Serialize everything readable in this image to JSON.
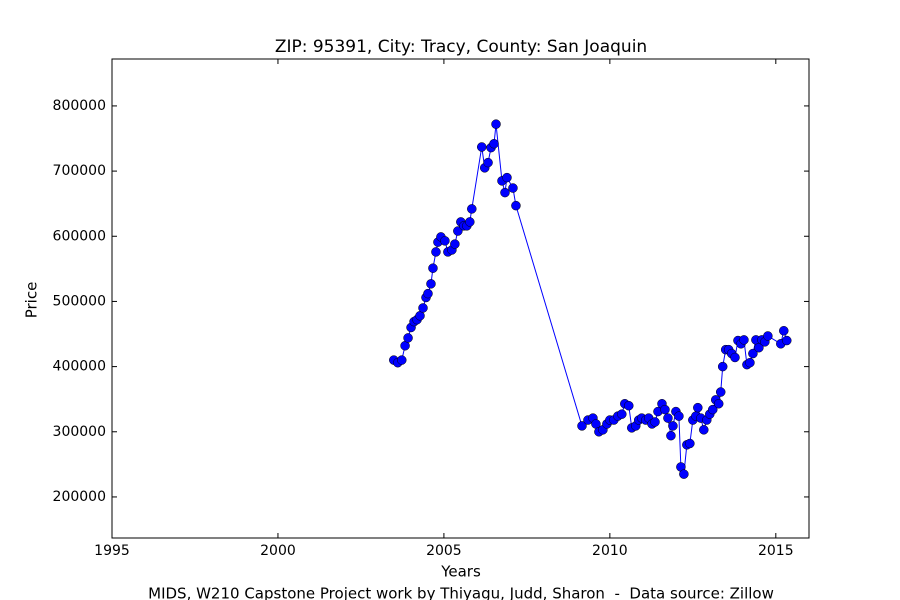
{
  "chart_data": {
    "type": "line",
    "title": "ZIP: 95391, City: Tracy, County: San Joaquin",
    "xlabel": "Years",
    "ylabel": "Price",
    "footer": "MIDS, W210 Capstone Project work by Thiyagu, Judd, Sharon  -  Data source: Zillow",
    "xlim": [
      1995,
      2016
    ],
    "xticks": [
      1995,
      2000,
      2005,
      2010,
      2015
    ],
    "ylim": [
      137000,
      872000
    ],
    "yticks": [
      200000,
      300000,
      400000,
      500000,
      600000,
      700000,
      800000
    ],
    "grid": false,
    "x": [
      2003.49,
      2003.61,
      2003.73,
      2003.83,
      2003.92,
      2004.01,
      2004.1,
      2004.19,
      2004.28,
      2004.37,
      2004.46,
      2004.52,
      2004.61,
      2004.67,
      2004.76,
      2004.82,
      2004.91,
      2005.03,
      2005.12,
      2005.24,
      2005.33,
      2005.42,
      2005.51,
      2005.6,
      2005.69,
      2005.78,
      2005.84,
      2006.14,
      2006.23,
      2006.33,
      2006.42,
      2006.51,
      2006.57,
      2006.75,
      2006.84,
      2006.9,
      2007.08,
      2007.17,
      2009.16,
      2009.34,
      2009.49,
      2009.58,
      2009.67,
      2009.79,
      2009.91,
      2010.0,
      2010.12,
      2010.24,
      2010.36,
      2010.45,
      2010.57,
      2010.66,
      2010.78,
      2010.87,
      2010.96,
      2011.08,
      2011.17,
      2011.27,
      2011.36,
      2011.45,
      2011.57,
      2011.66,
      2011.75,
      2011.84,
      2011.9,
      2011.99,
      2012.08,
      2012.14,
      2012.23,
      2012.32,
      2012.41,
      2012.5,
      2012.59,
      2012.65,
      2012.74,
      2012.83,
      2012.92,
      2013.01,
      2013.1,
      2013.19,
      2013.28,
      2013.34,
      2013.4,
      2013.49,
      2013.58,
      2013.67,
      2013.77,
      2013.86,
      2013.95,
      2014.04,
      2014.13,
      2014.22,
      2014.31,
      2014.4,
      2014.49,
      2014.58,
      2014.67,
      2014.76,
      2015.15,
      2015.24,
      2015.33
    ],
    "series": [
      {
        "name": "Price",
        "color": "#0000ff",
        "values": [
          410000,
          406000,
          410000,
          432000,
          444000,
          460000,
          469000,
          472000,
          478000,
          490000,
          506000,
          512000,
          527000,
          551000,
          576000,
          591000,
          599000,
          593000,
          576000,
          579000,
          588000,
          608000,
          622000,
          616000,
          616000,
          622000,
          642000,
          737000,
          705000,
          713000,
          736000,
          742000,
          772000,
          685000,
          667000,
          690000,
          674000,
          647000,
          309000,
          318000,
          321000,
          312000,
          300000,
          303000,
          312000,
          318000,
          318000,
          324000,
          327000,
          343000,
          340000,
          306000,
          309000,
          318000,
          321000,
          318000,
          321000,
          312000,
          315000,
          331000,
          343000,
          334000,
          321000,
          294000,
          309000,
          331000,
          324000,
          246000,
          235000,
          280000,
          282000,
          318000,
          324000,
          337000,
          321000,
          303000,
          318000,
          327000,
          334000,
          349000,
          343000,
          361000,
          400000,
          426000,
          426000,
          420000,
          414000,
          440000,
          435000,
          441000,
          403000,
          406000,
          420000,
          441000,
          429000,
          441000,
          438000,
          447000,
          435000,
          455000,
          440000
        ]
      }
    ]
  }
}
